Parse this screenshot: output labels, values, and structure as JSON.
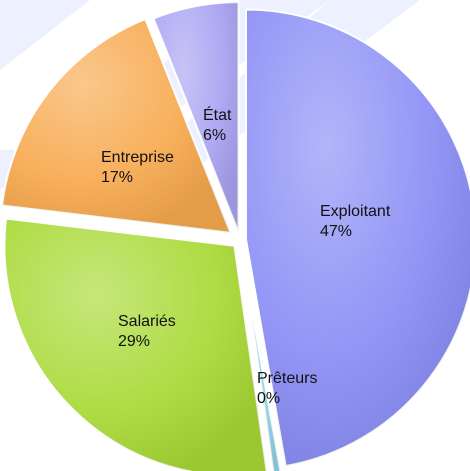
{
  "chart_data": {
    "type": "pie",
    "title": "",
    "slices": [
      {
        "name": "Exploitant",
        "label": "Exploitant",
        "value_label": "47%",
        "value": 47,
        "color": "#8a8df5"
      },
      {
        "name": "Prêteurs",
        "label": "Prêteurs",
        "value_label": "0%",
        "value": 0.5,
        "color": "#8fd3e8"
      },
      {
        "name": "Salariés",
        "label": "Salariés",
        "value_label": "29%",
        "value": 29,
        "color": "#a8d934"
      },
      {
        "name": "Entreprise",
        "label": "Entreprise",
        "value_label": "17%",
        "value": 17,
        "color": "#f7a94e"
      },
      {
        "name": "État",
        "label": "État",
        "value_label": "6%",
        "value": 6,
        "color": "#a9a3f2"
      }
    ],
    "legend": false
  }
}
